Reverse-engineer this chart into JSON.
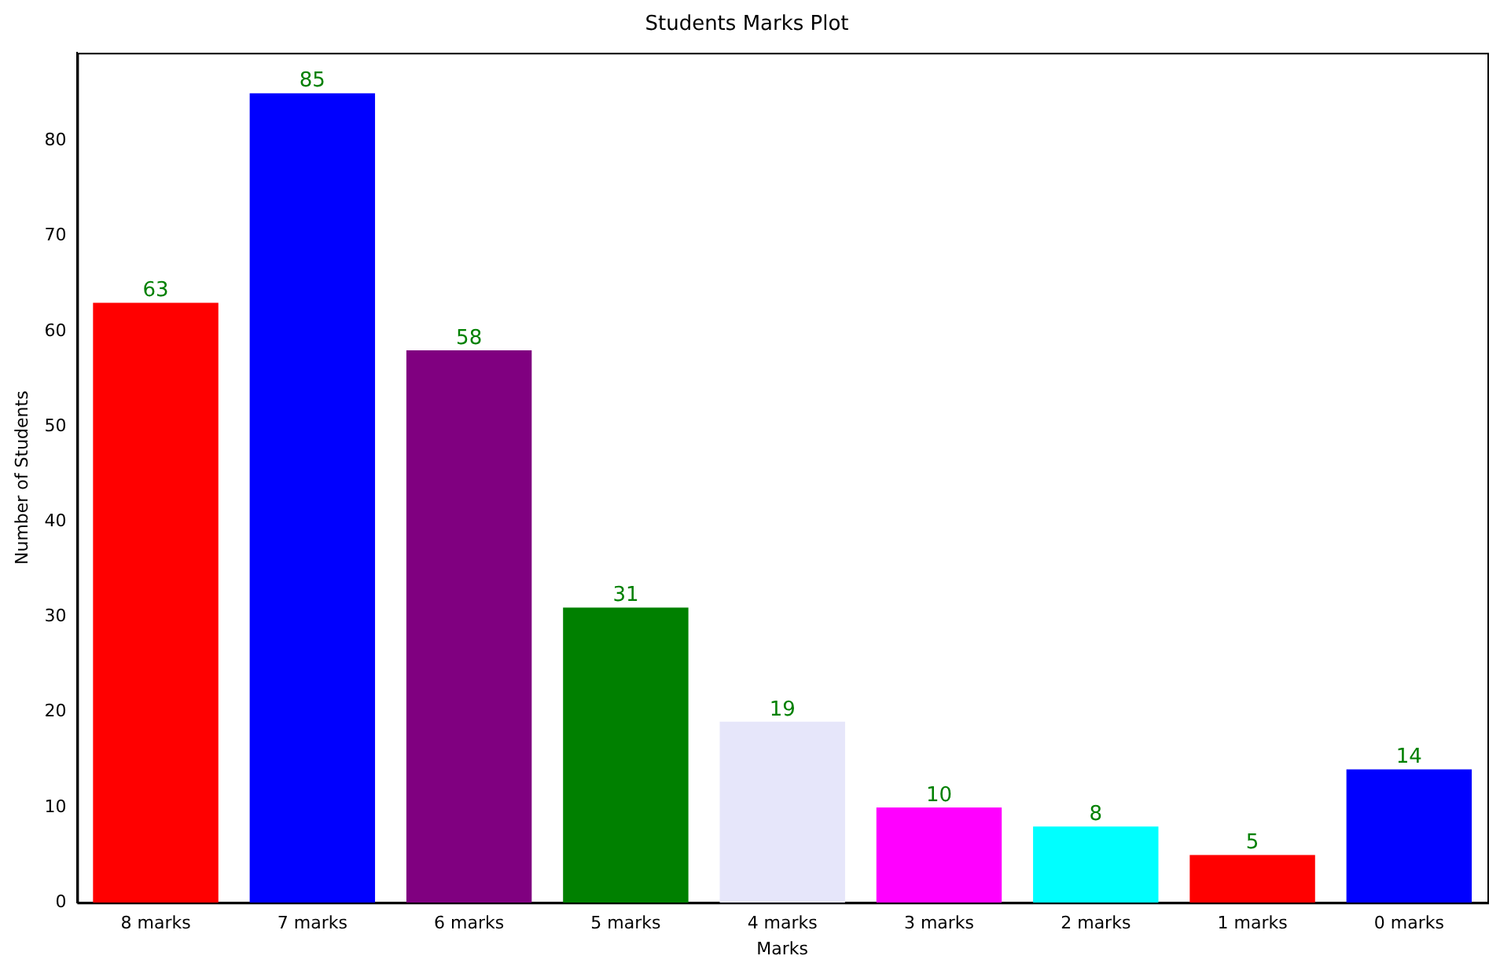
{
  "chart_data": {
    "type": "bar",
    "title": "Students Marks Plot",
    "xlabel": "Marks",
    "ylabel": "Number of Students",
    "categories": [
      "8 marks",
      "7 marks",
      "6 marks",
      "5 marks",
      "4 marks",
      "3 marks",
      "2 marks",
      "1 marks",
      "0 marks"
    ],
    "values": [
      63,
      85,
      58,
      31,
      19,
      10,
      8,
      5,
      14
    ],
    "colors": [
      "#ff0000",
      "#0000ff",
      "#800080",
      "#008000",
      "#e6e6fa",
      "#ff00ff",
      "#00ffff",
      "#ff0000",
      "#0000ff"
    ],
    "ylim": [
      0,
      89.25
    ],
    "yticks": [
      0,
      10,
      20,
      30,
      40,
      50,
      60,
      70,
      80
    ],
    "grid": false,
    "legend": false,
    "data_labels": true
  }
}
